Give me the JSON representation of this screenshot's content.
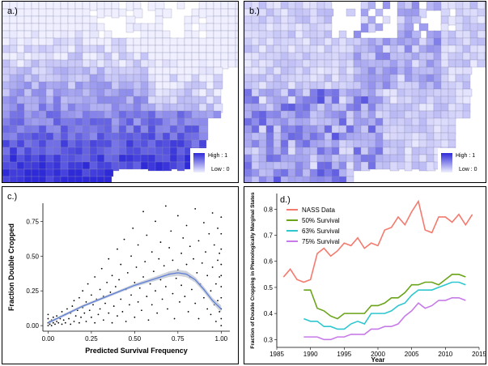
{
  "panels": {
    "a": {
      "label": "a.)",
      "legend_high": "High : 1",
      "legend_low": "Low : 0"
    },
    "b": {
      "label": "b.)",
      "legend_high": "High : 1",
      "legend_low": "Low : 0"
    },
    "c": {
      "label": "c.)"
    },
    "d": {
      "label": "d.)"
    }
  },
  "colors": {
    "map_high": "#2e2ad8",
    "map_low": "#efefff",
    "map_background": "#ffffff",
    "water": "#ffffff",
    "nass": "#f47a6e",
    "s50": "#6aa41a",
    "s63": "#2ec7cf",
    "s75": "#c77be8",
    "scatter_point": "#000000",
    "fit_line": "#5d7fd6",
    "fit_band": "#b9bfcc"
  },
  "chart_data": [
    {
      "type": "scatter",
      "panel": "c",
      "xlabel": "Predicted Survival Frequency",
      "ylabel": "Fraction Double Cropped",
      "xlim": [
        -0.03,
        1.05
      ],
      "ylim": [
        -0.04,
        0.88
      ],
      "xticks": [
        "0.00",
        "0.25",
        "0.50",
        "0.75",
        "1.00"
      ],
      "xtick_values": [
        0,
        0.25,
        0.5,
        0.75,
        1.0
      ],
      "yticks": [
        "0.00",
        "0.25",
        "0.50",
        "0.75"
      ],
      "ytick_values": [
        0,
        0.25,
        0.5,
        0.75
      ],
      "fit": {
        "x": [
          0.0,
          0.1,
          0.2,
          0.3,
          0.4,
          0.5,
          0.6,
          0.7,
          0.75,
          0.8,
          0.85,
          0.9,
          0.95,
          1.0
        ],
        "y": [
          0.02,
          0.08,
          0.14,
          0.19,
          0.24,
          0.29,
          0.33,
          0.37,
          0.38,
          0.37,
          0.33,
          0.26,
          0.18,
          0.12
        ],
        "band": [
          0.01,
          0.01,
          0.01,
          0.01,
          0.01,
          0.012,
          0.015,
          0.02,
          0.022,
          0.022,
          0.02,
          0.02,
          0.02,
          0.025
        ]
      },
      "points": [
        [
          0.0,
          0.0
        ],
        [
          0.0,
          0.02
        ],
        [
          0.0,
          0.05
        ],
        [
          0.0,
          0.08
        ],
        [
          0.01,
          0.01
        ],
        [
          0.01,
          0.03
        ],
        [
          0.02,
          0.0
        ],
        [
          0.02,
          0.04
        ],
        [
          0.03,
          0.02
        ],
        [
          0.03,
          0.06
        ],
        [
          0.04,
          0.01
        ],
        [
          0.05,
          0.03
        ],
        [
          0.05,
          0.07
        ],
        [
          0.06,
          0.02
        ],
        [
          0.07,
          0.05
        ],
        [
          0.08,
          0.1
        ],
        [
          0.08,
          0.01
        ],
        [
          0.09,
          0.04
        ],
        [
          0.1,
          0.08
        ],
        [
          0.1,
          0.02
        ],
        [
          0.11,
          0.12
        ],
        [
          0.12,
          0.05
        ],
        [
          0.13,
          0.01
        ],
        [
          0.13,
          0.09
        ],
        [
          0.14,
          0.14
        ],
        [
          0.15,
          0.03
        ],
        [
          0.15,
          0.18
        ],
        [
          0.16,
          0.07
        ],
        [
          0.17,
          0.11
        ],
        [
          0.18,
          0.02
        ],
        [
          0.18,
          0.2
        ],
        [
          0.19,
          0.06
        ],
        [
          0.2,
          0.13
        ],
        [
          0.2,
          0.25
        ],
        [
          0.21,
          0.09
        ],
        [
          0.22,
          0.03
        ],
        [
          0.22,
          0.17
        ],
        [
          0.23,
          0.3
        ],
        [
          0.24,
          0.11
        ],
        [
          0.25,
          0.06
        ],
        [
          0.25,
          0.22
        ],
        [
          0.26,
          0.15
        ],
        [
          0.27,
          0.02
        ],
        [
          0.27,
          0.35
        ],
        [
          0.28,
          0.19
        ],
        [
          0.29,
          0.08
        ],
        [
          0.3,
          0.26
        ],
        [
          0.3,
          0.12
        ],
        [
          0.31,
          0.41
        ],
        [
          0.32,
          0.04
        ],
        [
          0.32,
          0.21
        ],
        [
          0.33,
          0.16
        ],
        [
          0.34,
          0.31
        ],
        [
          0.35,
          0.09
        ],
        [
          0.35,
          0.48
        ],
        [
          0.36,
          0.24
        ],
        [
          0.37,
          0.02
        ],
        [
          0.37,
          0.36
        ],
        [
          0.38,
          0.14
        ],
        [
          0.39,
          0.28
        ],
        [
          0.4,
          0.55
        ],
        [
          0.4,
          0.07
        ],
        [
          0.41,
          0.33
        ],
        [
          0.42,
          0.19
        ],
        [
          0.42,
          0.44
        ],
        [
          0.43,
          0.1
        ],
        [
          0.44,
          0.62
        ],
        [
          0.45,
          0.26
        ],
        [
          0.45,
          0.03
        ],
        [
          0.46,
          0.38
        ],
        [
          0.47,
          0.15
        ],
        [
          0.48,
          0.5
        ],
        [
          0.48,
          0.22
        ],
        [
          0.49,
          0.7
        ],
        [
          0.5,
          0.31
        ],
        [
          0.5,
          0.06
        ],
        [
          0.51,
          0.42
        ],
        [
          0.52,
          0.17
        ],
        [
          0.52,
          0.58
        ],
        [
          0.53,
          0.27
        ],
        [
          0.54,
          0.11
        ],
        [
          0.55,
          0.82
        ],
        [
          0.55,
          0.35
        ],
        [
          0.56,
          0.46
        ],
        [
          0.57,
          0.21
        ],
        [
          0.57,
          0.65
        ],
        [
          0.58,
          0.04
        ],
        [
          0.59,
          0.3
        ],
        [
          0.6,
          0.53
        ],
        [
          0.6,
          0.15
        ],
        [
          0.61,
          0.39
        ],
        [
          0.62,
          0.75
        ],
        [
          0.62,
          0.25
        ],
        [
          0.63,
          0.09
        ],
        [
          0.64,
          0.48
        ],
        [
          0.65,
          0.33
        ],
        [
          0.65,
          0.6
        ],
        [
          0.66,
          0.19
        ],
        [
          0.67,
          0.43
        ],
        [
          0.68,
          0.86
        ],
        [
          0.68,
          0.28
        ],
        [
          0.69,
          0.12
        ],
        [
          0.7,
          0.56
        ],
        [
          0.7,
          0.37
        ],
        [
          0.71,
          0.68
        ],
        [
          0.72,
          0.23
        ],
        [
          0.72,
          0.47
        ],
        [
          0.73,
          0.05
        ],
        [
          0.74,
          0.34
        ],
        [
          0.75,
          0.79
        ],
        [
          0.75,
          0.4
        ],
        [
          0.76,
          0.17
        ],
        [
          0.77,
          0.52
        ],
        [
          0.77,
          0.29
        ],
        [
          0.78,
          0.63
        ],
        [
          0.79,
          0.21
        ],
        [
          0.8,
          0.44
        ],
        [
          0.8,
          0.72
        ],
        [
          0.81,
          0.1
        ],
        [
          0.82,
          0.35
        ],
        [
          0.82,
          0.57
        ],
        [
          0.83,
          0.26
        ],
        [
          0.84,
          0.48
        ],
        [
          0.85,
          0.84
        ],
        [
          0.85,
          0.16
        ],
        [
          0.86,
          0.38
        ],
        [
          0.87,
          0.61
        ],
        [
          0.87,
          0.05
        ],
        [
          0.88,
          0.3
        ],
        [
          0.89,
          0.45
        ],
        [
          0.9,
          0.74
        ],
        [
          0.9,
          0.2
        ],
        [
          0.91,
          0.53
        ],
        [
          0.92,
          0.12
        ],
        [
          0.92,
          0.36
        ],
        [
          0.93,
          0.66
        ],
        [
          0.94,
          0.25
        ],
        [
          0.94,
          0.08
        ],
        [
          0.95,
          0.42
        ],
        [
          0.95,
          0.81
        ],
        [
          0.96,
          0.15
        ],
        [
          0.96,
          0.58
        ],
        [
          0.97,
          0.3
        ],
        [
          0.97,
          0.03
        ],
        [
          0.98,
          0.47
        ],
        [
          0.98,
          0.18
        ],
        [
          0.98,
          0.7
        ],
        [
          0.99,
          0.1
        ],
        [
          0.99,
          0.35
        ],
        [
          0.99,
          0.52
        ],
        [
          1.0,
          0.0
        ],
        [
          1.0,
          0.05
        ],
        [
          1.0,
          0.12
        ],
        [
          1.0,
          0.2
        ],
        [
          1.0,
          0.28
        ],
        [
          1.0,
          0.36
        ],
        [
          1.0,
          0.44
        ],
        [
          1.0,
          0.55
        ],
        [
          1.0,
          0.66
        ],
        [
          1.0,
          0.78
        ]
      ]
    },
    {
      "type": "line",
      "panel": "d",
      "xlabel": "Year",
      "ylabel": "Fraction of Double Cropping in Phenologically Marginal States",
      "xlim": [
        1985,
        2015
      ],
      "ylim": [
        0.27,
        0.86
      ],
      "xticks": [
        "1985",
        "1990",
        "1995",
        "2000",
        "2005",
        "2010",
        "2015"
      ],
      "xtick_values": [
        1985,
        1990,
        1995,
        2000,
        2005,
        2010,
        2015
      ],
      "yticks": [
        "0.3",
        "0.4",
        "0.5",
        "0.6",
        "0.7",
        "0.8"
      ],
      "ytick_values": [
        0.3,
        0.4,
        0.5,
        0.6,
        0.7,
        0.8
      ],
      "legend_position": "top-left",
      "series": [
        {
          "name": "NASS Data",
          "color": "#f47a6e",
          "x": [
            1986,
            1987,
            1988,
            1989,
            1990,
            1991,
            1992,
            1993,
            1994,
            1995,
            1996,
            1997,
            1998,
            1999,
            2000,
            2001,
            2002,
            2003,
            2004,
            2005,
            2006,
            2007,
            2008,
            2009,
            2010,
            2011,
            2012,
            2013,
            2014
          ],
          "y": [
            0.54,
            0.57,
            0.53,
            0.52,
            0.53,
            0.63,
            0.65,
            0.62,
            0.64,
            0.67,
            0.66,
            0.69,
            0.65,
            0.67,
            0.66,
            0.72,
            0.73,
            0.77,
            0.74,
            0.79,
            0.83,
            0.72,
            0.71,
            0.77,
            0.77,
            0.75,
            0.78,
            0.74,
            0.78
          ]
        },
        {
          "name": "50% Survival",
          "color": "#6aa41a",
          "x": [
            1989,
            1990,
            1991,
            1992,
            1993,
            1994,
            1995,
            1996,
            1997,
            1998,
            1999,
            2000,
            2001,
            2002,
            2003,
            2004,
            2005,
            2006,
            2007,
            2008,
            2009,
            2010,
            2011,
            2012,
            2013
          ],
          "y": [
            0.49,
            0.49,
            0.42,
            0.41,
            0.39,
            0.38,
            0.4,
            0.4,
            0.4,
            0.4,
            0.43,
            0.43,
            0.44,
            0.46,
            0.46,
            0.48,
            0.51,
            0.51,
            0.52,
            0.52,
            0.51,
            0.53,
            0.55,
            0.55,
            0.54
          ]
        },
        {
          "name": "63% Survival",
          "color": "#2ec7cf",
          "x": [
            1989,
            1990,
            1991,
            1992,
            1993,
            1994,
            1995,
            1996,
            1997,
            1998,
            1999,
            2000,
            2001,
            2002,
            2003,
            2004,
            2005,
            2006,
            2007,
            2008,
            2009,
            2010,
            2011,
            2012,
            2013
          ],
          "y": [
            0.38,
            0.37,
            0.37,
            0.35,
            0.35,
            0.34,
            0.34,
            0.36,
            0.37,
            0.36,
            0.4,
            0.4,
            0.4,
            0.41,
            0.43,
            0.44,
            0.47,
            0.49,
            0.49,
            0.49,
            0.5,
            0.51,
            0.52,
            0.52,
            0.51
          ]
        },
        {
          "name": "75% Survival",
          "color": "#c77be8",
          "x": [
            1989,
            1990,
            1991,
            1992,
            1993,
            1994,
            1995,
            1996,
            1997,
            1998,
            1999,
            2000,
            2001,
            2002,
            2003,
            2004,
            2005,
            2006,
            2007,
            2008,
            2009,
            2010,
            2011,
            2012,
            2013
          ],
          "y": [
            0.31,
            0.31,
            0.31,
            0.3,
            0.3,
            0.31,
            0.31,
            0.32,
            0.32,
            0.32,
            0.34,
            0.34,
            0.35,
            0.35,
            0.36,
            0.39,
            0.41,
            0.44,
            0.42,
            0.43,
            0.45,
            0.45,
            0.46,
            0.46,
            0.45
          ]
        }
      ]
    }
  ]
}
